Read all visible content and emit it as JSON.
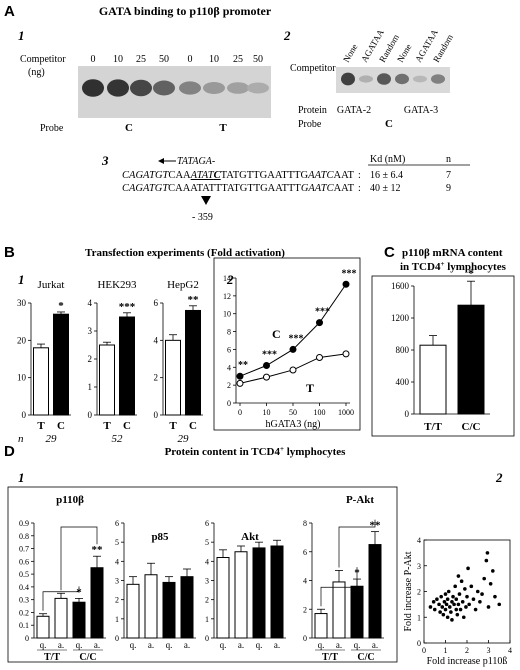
{
  "panelA": {
    "letter": "A",
    "title": "GATA binding to p110β promoter",
    "sub1": {
      "num": "1",
      "competitor_label": "Competitor",
      "competitor_unit": "(ng)",
      "lanes": [
        "0",
        "10",
        "25",
        "50",
        "0",
        "10",
        "25",
        "50"
      ],
      "probe_label": "Probe",
      "probe_c": "C",
      "probe_t": "T"
    },
    "sub2": {
      "num": "2",
      "competitor_label": "Competitor",
      "lanes": [
        "None",
        "AGATAA",
        "Random",
        "None",
        "AGATAA",
        "Random"
      ],
      "protein_label": "Protein",
      "proteins": [
        "GATA-2",
        "GATA-3"
      ],
      "probe_label": "Probe",
      "probe_value": "C"
    },
    "sub3": {
      "num": "3",
      "arrow_seq": "TATAGA-",
      "seq1_a": "CAGATGT",
      "seq1_b": "CAA",
      "seq1_c": "ATAT",
      "seq1_d": "C",
      "seq1_e": "TATGTTGAATTTG",
      "seq1_f": "AATC",
      "seq1_g": "AAT",
      "seq2_a": "CAGATGT",
      "seq2_b": "CAAATATTTATGTTGAATTT",
      "seq2_c": "GAATC",
      "seq2_d": "AAT",
      "colon": ":",
      "kd_header": "Kd (nM)",
      "n_header": "n",
      "kd1": "16 ± 6.4",
      "n1": "7",
      "kd2": "40 ± 12",
      "n2": "9",
      "position": "- 359"
    }
  },
  "panelB": {
    "letter": "B",
    "title": "Transfection experiments (Fold activation)",
    "sub1_num": "1",
    "sub2_num": "2"
  },
  "panelC": {
    "letter": "C",
    "title_line1": "p110β mRNA content",
    "title_line2_a": "in TCD4",
    "title_line2_sup": "+",
    "title_line2_b": " lymphocytes"
  },
  "panelD": {
    "letter": "D",
    "title_a": "Protein content in TCD4",
    "title_sup": "+",
    "title_b": " lymphocytes",
    "sub1_num": "1",
    "sub2_num": "2"
  },
  "chart_data": [
    {
      "id": "B1-jurkat",
      "type": "bar",
      "title": "Jurkat",
      "categories": [
        "T",
        "C"
      ],
      "values": [
        18,
        27
      ],
      "errors": [
        1,
        0.6
      ],
      "ylim": [
        0,
        30
      ],
      "yticks": [
        0,
        10,
        20,
        30
      ],
      "significance": "*",
      "n": "29"
    },
    {
      "id": "B1-hek293",
      "type": "bar",
      "title": "HEK293",
      "categories": [
        "T",
        "C"
      ],
      "values": [
        2.5,
        3.5
      ],
      "errors": [
        0.1,
        0.15
      ],
      "ylim": [
        0,
        4
      ],
      "yticks": [
        0,
        1,
        2,
        3,
        4
      ],
      "significance": "***",
      "n": "52"
    },
    {
      "id": "B1-hepg2",
      "type": "bar",
      "title": "HepG2",
      "categories": [
        "T",
        "C"
      ],
      "values": [
        4.0,
        5.6
      ],
      "errors": [
        0.3,
        0.25
      ],
      "ylim": [
        0,
        6
      ],
      "yticks": [
        0,
        2,
        4,
        6
      ],
      "significance": "**",
      "n": "29"
    },
    {
      "id": "B2",
      "type": "line",
      "xlabel": "hGATA3 (ng)",
      "x_scale": "log",
      "x": [
        0,
        10,
        50,
        100,
        1000
      ],
      "ylim": [
        0,
        14
      ],
      "yticks": [
        0,
        2,
        4,
        6,
        8,
        10,
        12,
        14
      ],
      "series": [
        {
          "name": "C",
          "values": [
            3.0,
            4.2,
            6.0,
            9.0,
            13.3
          ],
          "marker": "filled"
        },
        {
          "name": "T",
          "values": [
            2.2,
            2.9,
            3.7,
            5.1,
            5.5
          ],
          "marker": "open"
        }
      ],
      "significance": [
        "**",
        "***",
        "***",
        "***",
        "***"
      ]
    },
    {
      "id": "C",
      "type": "bar",
      "categories": [
        "T/T",
        "C/C"
      ],
      "values": [
        860,
        1360
      ],
      "errors": [
        120,
        300
      ],
      "ylim": [
        0,
        1600
      ],
      "yticks": [
        0,
        400,
        800,
        1200,
        1600
      ],
      "significance": "*"
    },
    {
      "id": "D1-p110b",
      "type": "bar",
      "title": "p110β",
      "categories": [
        "q.",
        "a.",
        "q.",
        "a."
      ],
      "groups": [
        "T/T",
        "C/C"
      ],
      "values": [
        0.17,
        0.31,
        0.28,
        0.55
      ],
      "errors": [
        0.02,
        0.04,
        0.03,
        0.09
      ],
      "ylim": [
        0,
        0.9
      ],
      "yticks": [
        0,
        0.1,
        0.2,
        0.3,
        0.4,
        0.5,
        0.6,
        0.7,
        0.8,
        0.9
      ],
      "significance": [
        "*",
        "**"
      ]
    },
    {
      "id": "D1-p85",
      "type": "bar",
      "title": "p85",
      "categories": [
        "q.",
        "a.",
        "q.",
        "a."
      ],
      "groups": [
        "",
        ""
      ],
      "values": [
        2.8,
        3.3,
        2.9,
        3.2
      ],
      "errors": [
        0.4,
        0.6,
        0.3,
        0.4
      ],
      "ylim": [
        0,
        6
      ],
      "yticks": [
        0,
        1,
        2,
        3,
        4,
        5,
        6
      ]
    },
    {
      "id": "D1-akt",
      "type": "bar",
      "title": "Akt",
      "categories": [
        "q.",
        "a.",
        "q.",
        "a."
      ],
      "groups": [
        "",
        ""
      ],
      "values": [
        4.2,
        4.5,
        4.7,
        4.8
      ],
      "errors": [
        0.4,
        0.3,
        0.3,
        0.3
      ],
      "ylim": [
        0,
        6
      ],
      "yticks": [
        0,
        1,
        2,
        3,
        4,
        5,
        6
      ]
    },
    {
      "id": "D1-pakt",
      "type": "bar",
      "title": "P-Akt",
      "categories": [
        "q.",
        "a.",
        "q.",
        "a."
      ],
      "groups": [
        "T/T",
        "C/C"
      ],
      "values": [
        1.7,
        3.9,
        3.6,
        6.5
      ],
      "errors": [
        0.3,
        0.8,
        0.5,
        0.9
      ],
      "ylim": [
        0,
        8
      ],
      "yticks": [
        0,
        2,
        4,
        6,
        8
      ],
      "significance": [
        "*",
        "**"
      ]
    },
    {
      "id": "D2",
      "type": "scatter",
      "xlabel": "Fold increase p110ß",
      "ylabel": "Fold increase P-Akt",
      "xlim": [
        0,
        4
      ],
      "ylim": [
        0,
        4
      ],
      "xticks": [
        0,
        1,
        2,
        3,
        4
      ],
      "yticks": [
        0,
        1,
        2,
        3,
        4
      ],
      "points": [
        [
          0.3,
          1.4
        ],
        [
          0.45,
          1.6
        ],
        [
          0.5,
          1.3
        ],
        [
          0.6,
          1.7
        ],
        [
          0.7,
          1.5
        ],
        [
          0.75,
          1.2
        ],
        [
          0.8,
          1.8
        ],
        [
          0.85,
          1.4
        ],
        [
          0.9,
          1.1
        ],
        [
          0.95,
          1.6
        ],
        [
          1.0,
          1.9
        ],
        [
          1.0,
          1.3
        ],
        [
          1.05,
          1.5
        ],
        [
          1.1,
          1.0
        ],
        [
          1.1,
          1.7
        ],
        [
          1.15,
          2.0
        ],
        [
          1.2,
          1.4
        ],
        [
          1.25,
          1.2
        ],
        [
          1.3,
          1.6
        ],
        [
          1.3,
          0.9
        ],
        [
          1.35,
          1.8
        ],
        [
          1.4,
          1.5
        ],
        [
          1.45,
          2.2
        ],
        [
          1.5,
          1.3
        ],
        [
          1.5,
          1.7
        ],
        [
          1.55,
          1.1
        ],
        [
          1.6,
          2.6
        ],
        [
          1.6,
          1.5
        ],
        [
          1.65,
          1.9
        ],
        [
          1.7,
          1.3
        ],
        [
          1.75,
          2.4
        ],
        [
          1.8,
          1.6
        ],
        [
          1.85,
          1.0
        ],
        [
          1.9,
          2.1
        ],
        [
          1.95,
          1.4
        ],
        [
          2.0,
          1.8
        ],
        [
          2.05,
          2.9
        ],
        [
          2.1,
          1.5
        ],
        [
          2.2,
          2.2
        ],
        [
          2.3,
          1.7
        ],
        [
          2.4,
          1.3
        ],
        [
          2.5,
          2.0
        ],
        [
          2.6,
          1.6
        ],
        [
          2.7,
          1.9
        ],
        [
          2.8,
          2.5
        ],
        [
          2.9,
          3.2
        ],
        [
          3.0,
          1.4
        ],
        [
          3.1,
          2.3
        ],
        [
          3.2,
          2.8
        ],
        [
          3.3,
          1.8
        ],
        [
          3.5,
          1.5
        ],
        [
          2.95,
          3.5
        ]
      ]
    }
  ]
}
